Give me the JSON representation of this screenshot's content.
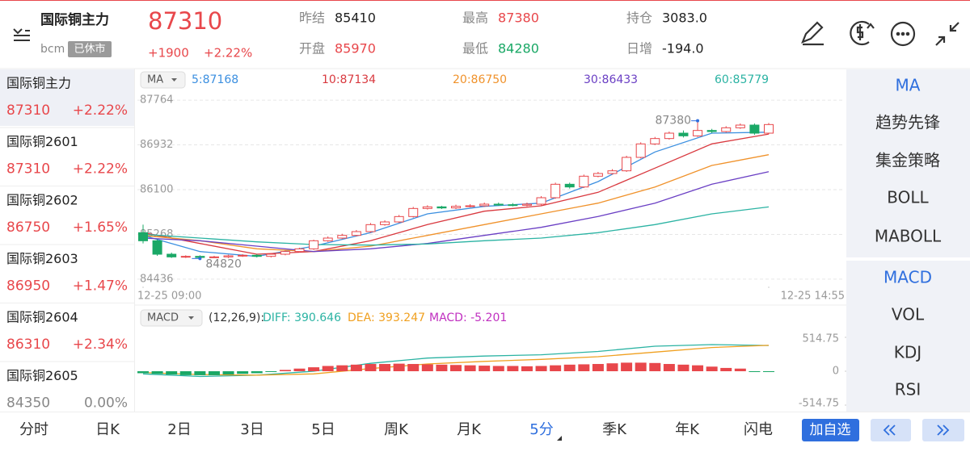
{
  "header": {
    "name": "国际铜主力",
    "code": "bcm",
    "status": "已休市",
    "price": "87310",
    "change": "+1900",
    "change_pct": "+2.22%",
    "stats": [
      {
        "label": "昨结",
        "value": "85410"
      },
      {
        "label": "最高",
        "value": "87380"
      },
      {
        "label": "持仓",
        "value": "3083.0"
      },
      {
        "label": "开盘",
        "value": "85970"
      },
      {
        "label": "最低",
        "value": "84280"
      },
      {
        "label": "日增",
        "value": "-194.0"
      }
    ]
  },
  "watchlist": [
    {
      "name": "国际铜主力",
      "price": "87310",
      "change": "+2.22%",
      "color": "#e8474b"
    },
    {
      "name": "国际铜2601",
      "price": "87310",
      "change": "+2.22%",
      "color": "#e8474b"
    },
    {
      "name": "国际铜2602",
      "price": "86750",
      "change": "+1.65%",
      "color": "#e8474b"
    },
    {
      "name": "国际铜2603",
      "price": "86950",
      "change": "+1.47%",
      "color": "#e8474b"
    },
    {
      "name": "国际铜2604",
      "price": "86310",
      "change": "+2.34%",
      "color": "#e8474b"
    },
    {
      "name": "国际铜2605",
      "price": "84350",
      "change": "0.00%",
      "color": "#888888"
    }
  ],
  "chart_data": [
    {
      "type": "candlestick",
      "indicator": "MA",
      "up_color": "#e8474b",
      "down_color": "#1aa866",
      "open": [
        85300,
        85150,
        84900,
        84850,
        84860,
        84840,
        84850,
        84870,
        84880,
        84860,
        84900,
        84950,
        85000,
        85150,
        85200,
        85250,
        85320,
        85450,
        85500,
        85600,
        85750,
        85780,
        85760,
        85790,
        85800,
        85830,
        85820,
        85810,
        85830,
        85950,
        86200,
        86150,
        86350,
        86400,
        86450,
        86700,
        86950,
        87050,
        87150,
        87100,
        87200,
        87180,
        87250,
        87300,
        87150
      ],
      "high": [
        85450,
        85180,
        84930,
        84880,
        84880,
        84870,
        84890,
        84900,
        84900,
        84920,
        84970,
        85020,
        85170,
        85230,
        85280,
        85350,
        85480,
        85530,
        85630,
        85780,
        85810,
        85800,
        85820,
        85830,
        85860,
        85860,
        85850,
        85860,
        85980,
        86230,
        86230,
        86380,
        86430,
        86480,
        86730,
        86980,
        87080,
        87180,
        87200,
        87380,
        87230,
        87280,
        87330,
        87330,
        87340
      ],
      "low": [
        85100,
        84870,
        84830,
        84830,
        84820,
        84830,
        84830,
        84850,
        84840,
        84840,
        84880,
        84930,
        84980,
        85130,
        85180,
        85230,
        85300,
        85430,
        85480,
        85580,
        85730,
        85740,
        85740,
        85770,
        85780,
        85800,
        85790,
        85790,
        85810,
        85930,
        86120,
        86130,
        86330,
        86380,
        86430,
        86680,
        86930,
        87030,
        87070,
        87080,
        87150,
        87160,
        87230,
        87120,
        87130
      ],
      "close": [
        85150,
        84900,
        84850,
        84860,
        84840,
        84850,
        84870,
        84880,
        84860,
        84900,
        84950,
        85000,
        85150,
        85200,
        85250,
        85320,
        85450,
        85500,
        85600,
        85750,
        85780,
        85760,
        85790,
        85800,
        85830,
        85820,
        85810,
        85830,
        85950,
        86200,
        86150,
        86350,
        86400,
        86450,
        86700,
        86950,
        87050,
        87150,
        87100,
        87200,
        87180,
        87250,
        87300,
        87150,
        87310
      ],
      "series": [
        {
          "name": "5:87168",
          "color": "#3b8fe0",
          "x": [
            0,
            4,
            8,
            12,
            16,
            20,
            24,
            28,
            32,
            36,
            40,
            44
          ],
          "values": [
            85250,
            84950,
            84860,
            85050,
            85300,
            85650,
            85790,
            85850,
            86250,
            86800,
            87150,
            87168
          ]
        },
        {
          "name": "10:87134",
          "color": "#d9393f",
          "x": [
            0,
            4,
            8,
            12,
            16,
            20,
            24,
            28,
            32,
            36,
            40,
            44
          ],
          "values": [
            85300,
            85100,
            84900,
            84950,
            85150,
            85450,
            85700,
            85800,
            86050,
            86500,
            86950,
            87134
          ]
        },
        {
          "name": "20:86750",
          "color": "#f0922b",
          "x": [
            0,
            4,
            8,
            12,
            16,
            20,
            24,
            28,
            32,
            36,
            40,
            44
          ],
          "values": [
            85250,
            85150,
            85000,
            84950,
            85050,
            85250,
            85450,
            85650,
            85850,
            86150,
            86550,
            86750
          ]
        },
        {
          "name": "30:86433",
          "color": "#6a3fc4",
          "x": [
            0,
            4,
            8,
            12,
            16,
            20,
            24,
            28,
            32,
            36,
            40,
            44
          ],
          "values": [
            85200,
            85150,
            85050,
            84950,
            85000,
            85100,
            85250,
            85400,
            85600,
            85850,
            86200,
            86433
          ]
        },
        {
          "name": "60:85779",
          "color": "#2bb3a3",
          "x": [
            0,
            4,
            8,
            12,
            16,
            20,
            24,
            28,
            32,
            36,
            40,
            44
          ],
          "values": [
            85270,
            85200,
            85130,
            85080,
            85070,
            85090,
            85150,
            85200,
            85300,
            85450,
            85650,
            85779
          ]
        }
      ],
      "xlim": [
        0,
        44
      ],
      "xticks": [
        {
          "value": 0,
          "label": "12-25 09:00"
        },
        {
          "value": 44,
          "label": "12-25 14:55"
        }
      ],
      "ylim": [
        84300,
        87900
      ],
      "yticks": [
        87764,
        86932,
        86100,
        85268,
        84436
      ],
      "grid": true,
      "annotations": [
        {
          "text": "87380",
          "x": 39,
          "y": 87380
        },
        {
          "text": "84820",
          "x": 4,
          "y": 84820
        }
      ]
    },
    {
      "type": "bar",
      "indicator": "MACD",
      "params": "(12,26,9):",
      "up_color": "#e8474b",
      "down_color": "#1aa866",
      "values": [
        -30,
        -40,
        -50,
        -60,
        -60,
        -60,
        -50,
        -40,
        -30,
        -10,
        20,
        40,
        60,
        80,
        90,
        100,
        110,
        110,
        115,
        110,
        105,
        100,
        95,
        90,
        85,
        80,
        80,
        75,
        80,
        90,
        100,
        105,
        110,
        120,
        130,
        130,
        125,
        110,
        100,
        90,
        70,
        50,
        40,
        -5,
        -5
      ],
      "series": [
        {
          "name": "DIFF: 390.646",
          "color": "#2bb3a3",
          "x": [
            0,
            4,
            8,
            12,
            16,
            20,
            24,
            28,
            32,
            36,
            40,
            44
          ],
          "values": [
            -40,
            -80,
            -60,
            0,
            120,
            200,
            230,
            250,
            300,
            380,
            405,
            391
          ]
        },
        {
          "name": "DEA: 393.247",
          "color": "#f0a020",
          "x": [
            0,
            4,
            8,
            12,
            16,
            20,
            24,
            28,
            32,
            36,
            40,
            44
          ],
          "values": [
            -20,
            -50,
            -60,
            -40,
            40,
            110,
            150,
            180,
            220,
            290,
            360,
            393
          ]
        },
        {
          "name": "MACD: -5.201",
          "color": "#c030c0"
        }
      ],
      "xlim": [
        0,
        44
      ],
      "ylim": [
        -514.75,
        514.75
      ],
      "yticks": [
        514.75,
        0,
        -514.75
      ]
    }
  ],
  "indicator_menu": [
    "MA",
    "趋势先锋",
    "集金策略",
    "BOLL",
    "MABOLL",
    "MACD",
    "VOL",
    "KDJ",
    "RSI"
  ],
  "tabs": [
    "分时",
    "日K",
    "2日",
    "3日",
    "5日",
    "周K",
    "月K",
    "5分",
    "季K",
    "年K",
    "闪电"
  ],
  "add_button": "加自选"
}
